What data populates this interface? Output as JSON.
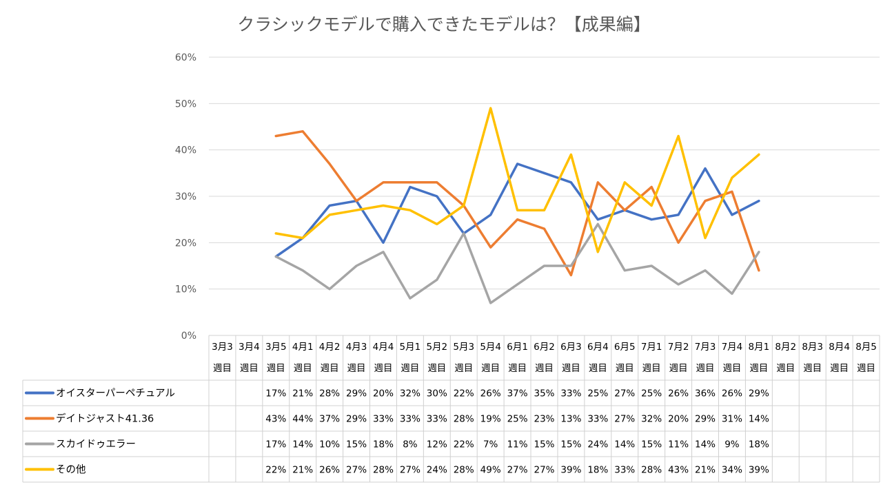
{
  "chart_data": {
    "type": "line",
    "title": "クラシックモデルで購入できたモデルは？【成果編】",
    "y_ticks": [
      "0%",
      "10%",
      "20%",
      "30%",
      "40%",
      "50%",
      "60%"
    ],
    "ylim": [
      0,
      60
    ],
    "grid": true,
    "legend": "data-table-left",
    "categories": [
      {
        "line1": "3月3",
        "line2": "週目"
      },
      {
        "line1": "3月4",
        "line2": "週目"
      },
      {
        "line1": "3月5",
        "line2": "週目"
      },
      {
        "line1": "4月1",
        "line2": "週目"
      },
      {
        "line1": "4月2",
        "line2": "週目"
      },
      {
        "line1": "4月3",
        "line2": "週目"
      },
      {
        "line1": "4月4",
        "line2": "週目"
      },
      {
        "line1": "5月1",
        "line2": "週目"
      },
      {
        "line1": "5月2",
        "line2": "週目"
      },
      {
        "line1": "5月3",
        "line2": "週目"
      },
      {
        "line1": "5月4",
        "line2": "週目"
      },
      {
        "line1": "6月1",
        "line2": "週目"
      },
      {
        "line1": "6月2",
        "line2": "週目"
      },
      {
        "line1": "6月3",
        "line2": "週目"
      },
      {
        "line1": "6月4",
        "line2": "週目"
      },
      {
        "line1": "6月5",
        "line2": "週目"
      },
      {
        "line1": "7月1",
        "line2": "週目"
      },
      {
        "line1": "7月2",
        "line2": "週目"
      },
      {
        "line1": "7月3",
        "line2": "週目"
      },
      {
        "line1": "7月4",
        "line2": "週目"
      },
      {
        "line1": "8月1",
        "line2": "週目"
      },
      {
        "line1": "8月2",
        "line2": "週目"
      },
      {
        "line1": "8月3",
        "line2": "週目"
      },
      {
        "line1": "8月4",
        "line2": "週目"
      },
      {
        "line1": "8月5",
        "line2": "週目"
      }
    ],
    "series": [
      {
        "name": "オイスターパーペチュアル",
        "color": "#4472c4",
        "values": [
          null,
          null,
          17,
          21,
          28,
          29,
          20,
          32,
          30,
          22,
          26,
          37,
          35,
          33,
          25,
          27,
          25,
          26,
          36,
          26,
          29,
          null,
          null,
          null,
          null
        ],
        "labels": [
          "",
          "",
          "17%",
          "21%",
          "28%",
          "29%",
          "20%",
          "32%",
          "30%",
          "22%",
          "26%",
          "37%",
          "35%",
          "33%",
          "25%",
          "27%",
          "25%",
          "26%",
          "36%",
          "26%",
          "29%",
          "",
          "",
          "",
          ""
        ]
      },
      {
        "name": "デイトジャスト41.36",
        "color": "#ed7d31",
        "values": [
          null,
          null,
          43,
          44,
          37,
          29,
          33,
          33,
          33,
          28,
          19,
          25,
          23,
          13,
          33,
          27,
          32,
          20,
          29,
          31,
          14,
          null,
          null,
          null,
          null
        ],
        "labels": [
          "",
          "",
          "43%",
          "44%",
          "37%",
          "29%",
          "33%",
          "33%",
          "33%",
          "28%",
          "19%",
          "25%",
          "23%",
          "13%",
          "33%",
          "27%",
          "32%",
          "20%",
          "29%",
          "31%",
          "14%",
          "",
          "",
          "",
          ""
        ]
      },
      {
        "name": "スカイドゥエラー",
        "color": "#a5a5a5",
        "values": [
          null,
          null,
          17,
          14,
          10,
          15,
          18,
          8,
          12,
          22,
          7,
          11,
          15,
          15,
          24,
          14,
          15,
          11,
          14,
          9,
          18,
          null,
          null,
          null,
          null
        ],
        "labels": [
          "",
          "",
          "17%",
          "14%",
          "10%",
          "15%",
          "18%",
          "8%",
          "12%",
          "22%",
          "7%",
          "11%",
          "15%",
          "15%",
          "24%",
          "14%",
          "15%",
          "11%",
          "14%",
          "9%",
          "18%",
          "",
          "",
          "",
          ""
        ]
      },
      {
        "name": "その他",
        "color": "#ffc000",
        "values": [
          null,
          null,
          22,
          21,
          26,
          27,
          28,
          27,
          24,
          28,
          49,
          27,
          27,
          39,
          18,
          33,
          28,
          43,
          21,
          34,
          39,
          null,
          null,
          null,
          null
        ],
        "labels": [
          "",
          "",
          "22%",
          "21%",
          "26%",
          "27%",
          "28%",
          "27%",
          "24%",
          "28%",
          "49%",
          "27%",
          "27%",
          "39%",
          "18%",
          "33%",
          "28%",
          "43%",
          "21%",
          "34%",
          "39%",
          "",
          "",
          "",
          ""
        ]
      }
    ]
  }
}
